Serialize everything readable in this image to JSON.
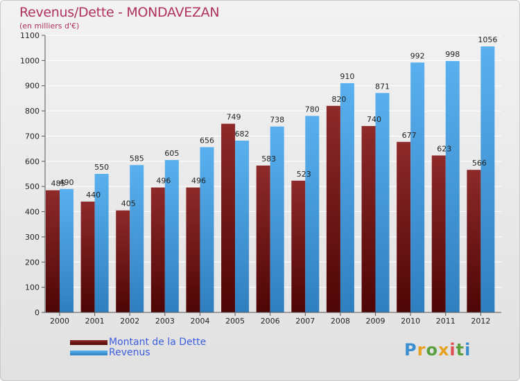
{
  "header": {
    "title": "Revenus/Dette - MONDAVEZAN",
    "subtitle": "(en milliers d'€)"
  },
  "legend": {
    "items": [
      {
        "label": "Montant de la Dette",
        "color": "#7a1a1a"
      },
      {
        "label": "Revenus",
        "color": "#4aa0e0"
      }
    ]
  },
  "logo": {
    "text": "Proxiti"
  },
  "chart_data": {
    "type": "bar",
    "title": "Revenus/Dette - MONDAVEZAN",
    "subtitle": "(en milliers d'€)",
    "categories": [
      "2000",
      "2001",
      "2002",
      "2003",
      "2004",
      "2005",
      "2006",
      "2007",
      "2008",
      "2009",
      "2010",
      "2011",
      "2012"
    ],
    "series": [
      {
        "name": "Montant de la Dette",
        "color": "#7a1a1a",
        "values": [
          485,
          440,
          405,
          496,
          496,
          749,
          583,
          523,
          820,
          740,
          677,
          623,
          566
        ]
      },
      {
        "name": "Revenus",
        "color": "#4aa0e0",
        "values": [
          490,
          550,
          585,
          605,
          656,
          682,
          738,
          780,
          910,
          871,
          992,
          998,
          1056
        ]
      }
    ],
    "yticks": [
      0,
      100,
      200,
      300,
      400,
      500,
      600,
      700,
      800,
      900,
      1000,
      1100
    ],
    "ylim": [
      0,
      1100
    ],
    "grid": true,
    "legend_position": "bottom-left"
  }
}
